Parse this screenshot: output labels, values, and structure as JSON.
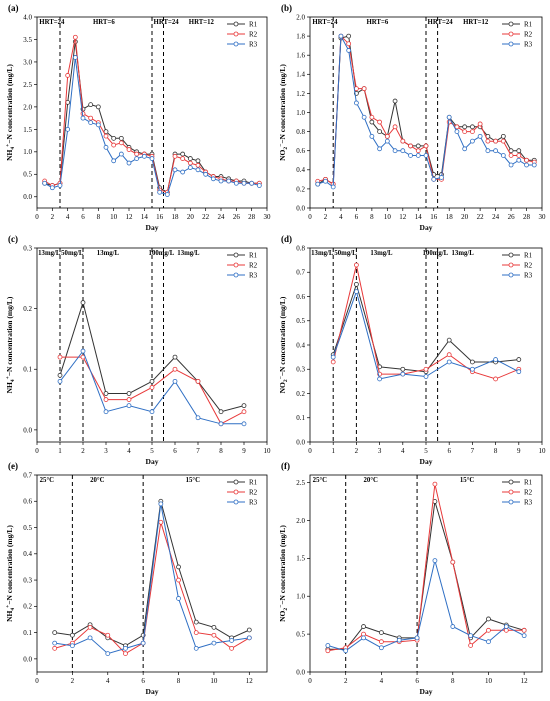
{
  "colors": {
    "R1": "#333333",
    "R2": "#e8393a",
    "R3": "#2f6fc4"
  },
  "chart_data": [
    {
      "type": "line",
      "panel": "(a)",
      "xlabel": "Day",
      "ylabel": "NH4+-N concentration (mg/L)",
      "ylabel_parts": [
        "NH",
        "4",
        "+",
        "−N concentration (mg/L)"
      ],
      "xlim": [
        0,
        30
      ],
      "ylim": [
        -0.25,
        4.0
      ],
      "xticks": [
        0,
        2,
        4,
        6,
        8,
        10,
        12,
        14,
        16,
        18,
        20,
        22,
        24,
        26,
        28,
        30
      ],
      "yticks": [
        0.0,
        0.5,
        1.0,
        1.5,
        2.0,
        2.5,
        3.0,
        3.5,
        4.0
      ],
      "ytick_labels": [
        "0.0",
        "0.5",
        "1.0",
        "1.5",
        "2.0",
        "2.5",
        "3.0",
        "3.5",
        "4.0"
      ],
      "vlines": [
        3,
        15,
        16.5
      ],
      "annotations": [
        {
          "text": "HRT=24",
          "x": 0.3
        },
        {
          "text": "HRT=6",
          "x": 7.3
        },
        {
          "text": "HRT=24",
          "x": 15.2
        },
        {
          "text": "HRT=12",
          "x": 19.8
        }
      ],
      "legend": [
        "R1",
        "R2",
        "R3"
      ],
      "series": [
        {
          "name": "R1",
          "x": [
            1,
            2,
            3,
            4,
            5,
            6,
            7,
            8,
            9,
            10,
            11,
            12,
            13,
            14,
            15,
            16,
            17,
            18,
            19,
            20,
            21,
            22,
            23,
            24,
            25,
            26,
            27,
            28,
            29
          ],
          "y": [
            0.3,
            0.25,
            0.3,
            2.1,
            3.45,
            1.95,
            2.05,
            2.0,
            1.45,
            1.3,
            1.3,
            1.1,
            1.0,
            0.95,
            0.95,
            0.2,
            0.1,
            0.95,
            0.95,
            0.85,
            0.8,
            0.55,
            0.45,
            0.45,
            0.4,
            0.35,
            0.35,
            0.3,
            0.3
          ]
        },
        {
          "name": "R2",
          "x": [
            1,
            2,
            3,
            4,
            5,
            6,
            7,
            8,
            9,
            10,
            11,
            12,
            13,
            14,
            15,
            16,
            17,
            18,
            19,
            20,
            21,
            22,
            23,
            24,
            25,
            26,
            27,
            28,
            29
          ],
          "y": [
            0.35,
            0.25,
            0.3,
            2.7,
            3.55,
            1.85,
            1.75,
            1.65,
            1.35,
            1.15,
            1.2,
            1.05,
            0.95,
            0.95,
            0.9,
            0.15,
            0.1,
            0.9,
            0.85,
            0.75,
            0.7,
            0.55,
            0.45,
            0.4,
            0.35,
            0.35,
            0.3,
            0.3,
            0.3
          ]
        },
        {
          "name": "R3",
          "x": [
            1,
            2,
            3,
            4,
            5,
            6,
            7,
            8,
            9,
            10,
            11,
            12,
            13,
            14,
            15,
            16,
            17,
            18,
            19,
            20,
            21,
            22,
            23,
            24,
            25,
            26,
            27,
            28,
            29
          ],
          "y": [
            0.3,
            0.2,
            0.25,
            1.5,
            3.1,
            1.75,
            1.65,
            1.6,
            1.1,
            0.8,
            0.95,
            0.75,
            0.85,
            0.9,
            0.85,
            0.1,
            0.05,
            0.6,
            0.55,
            0.65,
            0.6,
            0.5,
            0.4,
            0.35,
            0.35,
            0.3,
            0.3,
            0.3,
            0.25
          ]
        }
      ]
    },
    {
      "type": "line",
      "panel": "(b)",
      "xlabel": "Day",
      "ylabel": "NO2−-N concentration (mg/L)",
      "ylabel_parts": [
        "NO",
        "2",
        "−",
        "−N concentration (mg/L)"
      ],
      "xlim": [
        0,
        30
      ],
      "ylim": [
        0.0,
        2.0
      ],
      "xticks": [
        0,
        2,
        4,
        6,
        8,
        10,
        12,
        14,
        16,
        18,
        20,
        22,
        24,
        26,
        28,
        30
      ],
      "yticks": [
        0.0,
        0.2,
        0.4,
        0.6,
        0.8,
        1.0,
        1.2,
        1.4,
        1.6,
        1.8,
        2.0
      ],
      "ytick_labels": [
        "0.0",
        "0.2",
        "0.4",
        "0.6",
        "0.8",
        "1.0",
        "1.2",
        "1.4",
        "1.6",
        "1.8",
        "2.0"
      ],
      "vlines": [
        3,
        15,
        16.5
      ],
      "annotations": [
        {
          "text": "HRT=24",
          "x": 0.3
        },
        {
          "text": "HRT=6",
          "x": 7.3
        },
        {
          "text": "HRT=24",
          "x": 15.2
        },
        {
          "text": "HRT=12",
          "x": 19.8
        }
      ],
      "legend": [
        "R1",
        "R2",
        "R3"
      ],
      "series": [
        {
          "name": "R1",
          "x": [
            1,
            2,
            3,
            4,
            5,
            6,
            7,
            8,
            9,
            10,
            11,
            12,
            13,
            14,
            15,
            16,
            17,
            18,
            19,
            20,
            21,
            22,
            23,
            24,
            25,
            26,
            27,
            28,
            29
          ],
          "y": [
            0.25,
            0.3,
            0.25,
            1.78,
            1.8,
            1.2,
            1.25,
            0.9,
            0.8,
            0.75,
            1.12,
            0.7,
            0.65,
            0.65,
            0.65,
            0.35,
            0.35,
            0.95,
            0.85,
            0.85,
            0.85,
            0.85,
            0.75,
            0.7,
            0.75,
            0.6,
            0.6,
            0.5,
            0.5
          ]
        },
        {
          "name": "R2",
          "x": [
            1,
            2,
            3,
            4,
            5,
            6,
            7,
            8,
            9,
            10,
            11,
            12,
            13,
            14,
            15,
            16,
            17,
            18,
            19,
            20,
            21,
            22,
            23,
            24,
            25,
            26,
            27,
            28,
            29
          ],
          "y": [
            0.28,
            0.3,
            0.25,
            1.8,
            1.72,
            1.25,
            1.25,
            0.95,
            0.9,
            0.75,
            0.85,
            0.7,
            0.65,
            0.6,
            0.65,
            0.3,
            0.3,
            0.9,
            0.85,
            0.8,
            0.8,
            0.88,
            0.7,
            0.7,
            0.7,
            0.55,
            0.55,
            0.5,
            0.48
          ]
        },
        {
          "name": "R3",
          "x": [
            1,
            2,
            3,
            4,
            5,
            6,
            7,
            8,
            9,
            10,
            11,
            12,
            13,
            14,
            15,
            16,
            17,
            18,
            19,
            20,
            21,
            22,
            23,
            24,
            25,
            26,
            27,
            28,
            29
          ],
          "y": [
            0.25,
            0.28,
            0.22,
            1.8,
            1.65,
            1.1,
            0.95,
            0.75,
            0.62,
            0.7,
            0.6,
            0.6,
            0.55,
            0.55,
            0.55,
            0.3,
            0.32,
            0.95,
            0.8,
            0.62,
            0.7,
            0.75,
            0.6,
            0.6,
            0.55,
            0.45,
            0.5,
            0.45,
            0.45
          ]
        }
      ]
    },
    {
      "type": "line",
      "panel": "(c)",
      "xlabel": "Day",
      "ylabel": "NH4+-N concentration (mg/L)",
      "ylabel_parts": [
        "NH",
        "4",
        "+",
        "−N concentration (mg/L)"
      ],
      "xlim": [
        0,
        10
      ],
      "ylim": [
        -0.02,
        0.3
      ],
      "xticks": [
        0,
        1,
        2,
        3,
        4,
        5,
        6,
        7,
        8,
        9,
        10
      ],
      "yticks": [
        0.0,
        0.1,
        0.2,
        0.3
      ],
      "ytick_labels": [
        "0.0",
        "0.1",
        "0.2",
        "0.3"
      ],
      "vlines": [
        1,
        2,
        5,
        5.5
      ],
      "annotations": [
        {
          "text": "13mg/L",
          "x": 0.05
        },
        {
          "text": "50mg/L",
          "x": 1.05
        },
        {
          "text": "13mg/L",
          "x": 2.6
        },
        {
          "text": "100mg/L",
          "x": 4.85
        },
        {
          "text": "13mg/L",
          "x": 6.1
        }
      ],
      "legend": [
        "R1",
        "R2",
        "R3"
      ],
      "series": [
        {
          "name": "R1",
          "x": [
            1,
            2,
            3,
            4,
            5,
            6,
            7,
            8,
            9
          ],
          "y": [
            0.09,
            0.21,
            0.06,
            0.06,
            0.08,
            0.12,
            0.08,
            0.03,
            0.04
          ]
        },
        {
          "name": "R2",
          "x": [
            1,
            2,
            3,
            4,
            5,
            6,
            7,
            8,
            9
          ],
          "y": [
            0.12,
            0.12,
            0.05,
            0.05,
            0.07,
            0.1,
            0.08,
            0.01,
            0.03
          ]
        },
        {
          "name": "R3",
          "x": [
            1,
            2,
            3,
            4,
            5,
            6,
            7,
            8,
            9
          ],
          "y": [
            0.08,
            0.13,
            0.03,
            0.04,
            0.03,
            0.08,
            0.02,
            0.01,
            0.01
          ]
        }
      ]
    },
    {
      "type": "line",
      "panel": "(d)",
      "xlabel": "Day",
      "ylabel": "NO2−-N concentration (mg/L)",
      "ylabel_parts": [
        "NO",
        "2",
        "−",
        "−N concentration (mg/L)"
      ],
      "xlim": [
        0,
        10
      ],
      "ylim": [
        0.0,
        0.8
      ],
      "xticks": [
        0,
        1,
        2,
        3,
        4,
        5,
        6,
        7,
        8,
        9,
        10
      ],
      "yticks": [
        0.0,
        0.1,
        0.2,
        0.3,
        0.4,
        0.5,
        0.6,
        0.7,
        0.8
      ],
      "ytick_labels": [
        "0.0",
        "0.1",
        "0.2",
        "0.3",
        "0.4",
        "0.5",
        "0.6",
        "0.7",
        "0.8"
      ],
      "vlines": [
        1,
        2,
        5,
        5.5
      ],
      "annotations": [
        {
          "text": "13mg/L",
          "x": 0.05
        },
        {
          "text": "50mg/L",
          "x": 1.05
        },
        {
          "text": "13mg/L",
          "x": 2.6
        },
        {
          "text": "100mg/L",
          "x": 4.85
        },
        {
          "text": "13mg/L",
          "x": 6.1
        }
      ],
      "legend": [
        "R1",
        "R2",
        "R3"
      ],
      "series": [
        {
          "name": "R1",
          "x": [
            1,
            2,
            3,
            4,
            5,
            6,
            7,
            8,
            9
          ],
          "y": [
            0.36,
            0.65,
            0.31,
            0.3,
            0.29,
            0.42,
            0.33,
            0.33,
            0.34
          ]
        },
        {
          "name": "R2",
          "x": [
            1,
            2,
            3,
            4,
            5,
            6,
            7,
            8,
            9
          ],
          "y": [
            0.33,
            0.73,
            0.28,
            0.28,
            0.3,
            0.36,
            0.29,
            0.26,
            0.3
          ]
        },
        {
          "name": "R3",
          "x": [
            1,
            2,
            3,
            4,
            5,
            6,
            7,
            8,
            9
          ],
          "y": [
            0.35,
            0.62,
            0.26,
            0.28,
            0.27,
            0.33,
            0.3,
            0.34,
            0.29
          ]
        }
      ]
    },
    {
      "type": "line",
      "panel": "(e)",
      "xlabel": "Day",
      "ylabel": "NH4+-N concentration (mg/L)",
      "ylabel_parts": [
        "NH",
        "4",
        "+",
        "−N concentration (mg/L)"
      ],
      "xlim": [
        0,
        13
      ],
      "ylim": [
        -0.05,
        0.7
      ],
      "xticks": [
        0,
        2,
        4,
        6,
        8,
        10,
        12
      ],
      "yticks": [
        0.0,
        0.1,
        0.2,
        0.3,
        0.4,
        0.5,
        0.6,
        0.7
      ],
      "ytick_labels": [
        "0.0",
        "0.1",
        "0.2",
        "0.3",
        "0.4",
        "0.5",
        "0.6",
        "0.7"
      ],
      "vlines": [
        2,
        6
      ],
      "annotations": [
        {
          "text": "25°C",
          "x": 0.15
        },
        {
          "text": "20°C",
          "x": 3.0
        },
        {
          "text": "15°C",
          "x": 8.4
        }
      ],
      "legend": [
        "R1",
        "R2",
        "R3"
      ],
      "series": [
        {
          "name": "R1",
          "x": [
            1,
            2,
            3,
            4,
            5,
            6,
            7,
            8,
            9,
            10,
            11,
            12
          ],
          "y": [
            0.1,
            0.09,
            0.13,
            0.08,
            0.05,
            0.09,
            0.6,
            0.35,
            0.14,
            0.12,
            0.08,
            0.11
          ]
        },
        {
          "name": "R2",
          "x": [
            1,
            2,
            3,
            4,
            5,
            6,
            7,
            8,
            9,
            10,
            11,
            12
          ],
          "y": [
            0.04,
            0.06,
            0.12,
            0.09,
            0.02,
            0.06,
            0.52,
            0.3,
            0.1,
            0.09,
            0.04,
            0.08
          ]
        },
        {
          "name": "R3",
          "x": [
            1,
            2,
            3,
            4,
            5,
            6,
            7,
            8,
            9,
            10,
            11,
            12
          ],
          "y": [
            0.06,
            0.05,
            0.08,
            0.02,
            0.04,
            0.06,
            0.59,
            0.23,
            0.04,
            0.06,
            0.07,
            0.08
          ]
        }
      ]
    },
    {
      "type": "line",
      "panel": "(f)",
      "xlabel": "Day",
      "ylabel": "NO2−-N concentration (mg/L)",
      "ylabel_parts": [
        "NO",
        "2",
        "−",
        "−N concentration (mg/L)"
      ],
      "xlim": [
        0,
        13
      ],
      "ylim": [
        0.0,
        2.6
      ],
      "xticks": [
        0,
        2,
        4,
        6,
        8,
        10,
        12
      ],
      "yticks": [
        0.0,
        0.5,
        1.0,
        1.5,
        2.0,
        2.5
      ],
      "ytick_labels": [
        "0.0",
        "0.5",
        "1.0",
        "1.5",
        "2.0",
        "2.5"
      ],
      "vlines": [
        2,
        6
      ],
      "annotations": [
        {
          "text": "25°C",
          "x": 0.15
        },
        {
          "text": "20°C",
          "x": 3.0
        },
        {
          "text": "15°C",
          "x": 8.4
        }
      ],
      "legend": [
        "R1",
        "R2",
        "R3"
      ],
      "series": [
        {
          "name": "R1",
          "x": [
            1,
            2,
            3,
            4,
            5,
            6,
            7,
            8,
            9,
            10,
            11,
            12
          ],
          "y": [
            0.3,
            0.3,
            0.6,
            0.52,
            0.45,
            0.45,
            2.25,
            1.45,
            0.45,
            0.7,
            0.62,
            0.55
          ]
        },
        {
          "name": "R2",
          "x": [
            1,
            2,
            3,
            4,
            5,
            6,
            7,
            8,
            9,
            10,
            11,
            12
          ],
          "y": [
            0.28,
            0.32,
            0.5,
            0.4,
            0.4,
            0.42,
            2.48,
            1.45,
            0.35,
            0.55,
            0.55,
            0.55
          ]
        },
        {
          "name": "R3",
          "x": [
            1,
            2,
            3,
            4,
            5,
            6,
            7,
            8,
            9,
            10,
            11,
            12
          ],
          "y": [
            0.35,
            0.28,
            0.45,
            0.32,
            0.42,
            0.45,
            1.47,
            0.6,
            0.48,
            0.4,
            0.6,
            0.48
          ]
        }
      ]
    }
  ]
}
